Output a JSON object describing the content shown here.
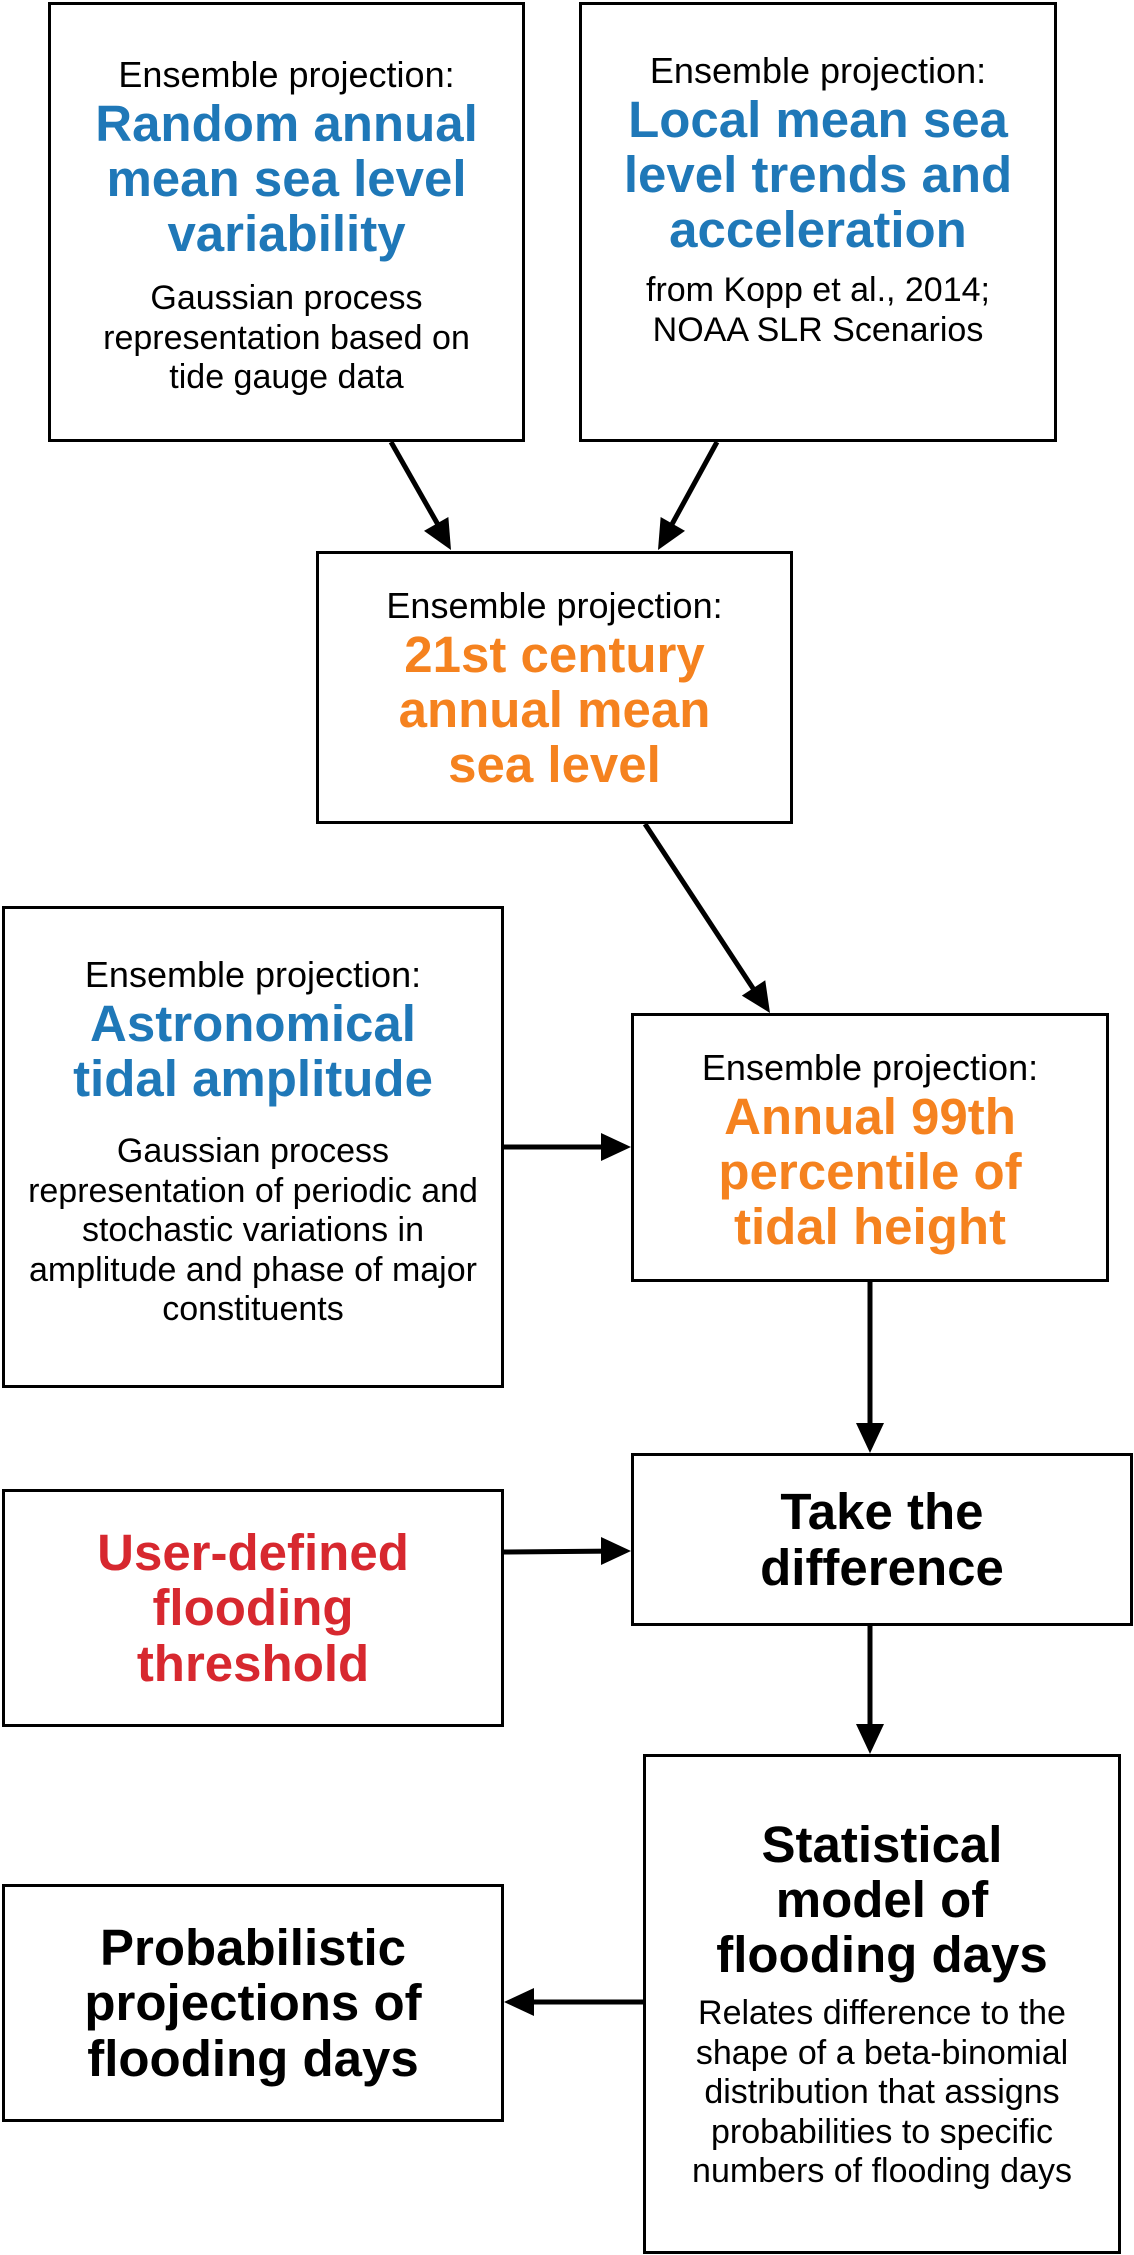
{
  "nodes": {
    "variability": {
      "prefix": "Ensemble projection:",
      "title": "Random annual mean sea level variability",
      "description": "Gaussian process representation based on tide gauge data"
    },
    "trends": {
      "prefix": "Ensemble projection:",
      "title": "Local mean sea level trends and acceleration",
      "description": "from Kopp et al., 2014; NOAA SLR Scenarios"
    },
    "annual_msl": {
      "prefix": "Ensemble projection:",
      "title": "21st century annual mean sea level"
    },
    "tidal_amplitude": {
      "prefix": "Ensemble projection:",
      "title": "Astronomical tidal amplitude",
      "description": "Gaussian process representation of periodic and stochastic variations in amplitude and phase of major constituents"
    },
    "percentile": {
      "prefix": "Ensemble projection:",
      "title": "Annual 99th percentile of tidal height"
    },
    "threshold": {
      "title": "User-defined flooding threshold"
    },
    "difference": {
      "title": "Take the difference"
    },
    "statistical_model": {
      "title": "Statistical model of flooding days",
      "description": "Relates difference to the shape of a beta-binomial distribution that assigns probabilities to specific numbers of flooding days"
    },
    "probabilistic": {
      "title": "Probabilistic projections of flooding days"
    }
  },
  "colors": {
    "blue": "#1f78b8",
    "orange": "#f5821f",
    "red": "#d7282f",
    "border": "#000000"
  }
}
